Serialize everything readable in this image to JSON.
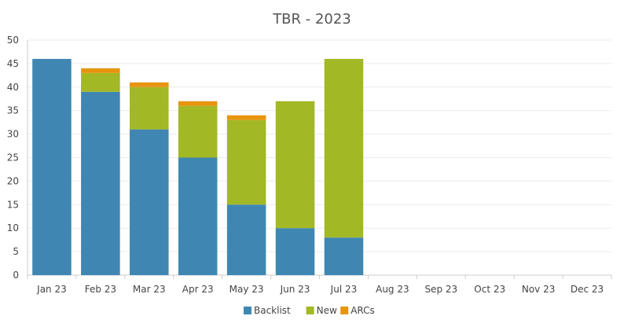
{
  "chart_data": {
    "type": "bar",
    "stacked": true,
    "title": "TBR - 2023",
    "xlabel": "",
    "ylabel": "",
    "ylim": [
      0,
      50
    ],
    "yticks": [
      0,
      5,
      10,
      15,
      20,
      25,
      30,
      35,
      40,
      45,
      50
    ],
    "grid": true,
    "legend_position": "bottom",
    "categories": [
      "Jan 23",
      "Feb 23",
      "Mar 23",
      "Apr 23",
      "May 23",
      "Jun 23",
      "Jul 23",
      "Aug 23",
      "Sep 23",
      "Oct 23",
      "Nov 23",
      "Dec 23"
    ],
    "series": [
      {
        "name": "Backlist",
        "color": "#3f87b2",
        "values": [
          46,
          39,
          31,
          25,
          15,
          10,
          8,
          0,
          0,
          0,
          0,
          0
        ]
      },
      {
        "name": "New",
        "color": "#a3b825",
        "values": [
          0,
          4,
          9,
          11,
          18,
          27,
          38,
          0,
          0,
          0,
          0,
          0
        ]
      },
      {
        "name": "ARCs",
        "color": "#e8940f",
        "values": [
          0,
          1,
          1,
          1,
          1,
          0,
          0,
          0,
          0,
          0,
          0,
          0
        ]
      }
    ]
  }
}
